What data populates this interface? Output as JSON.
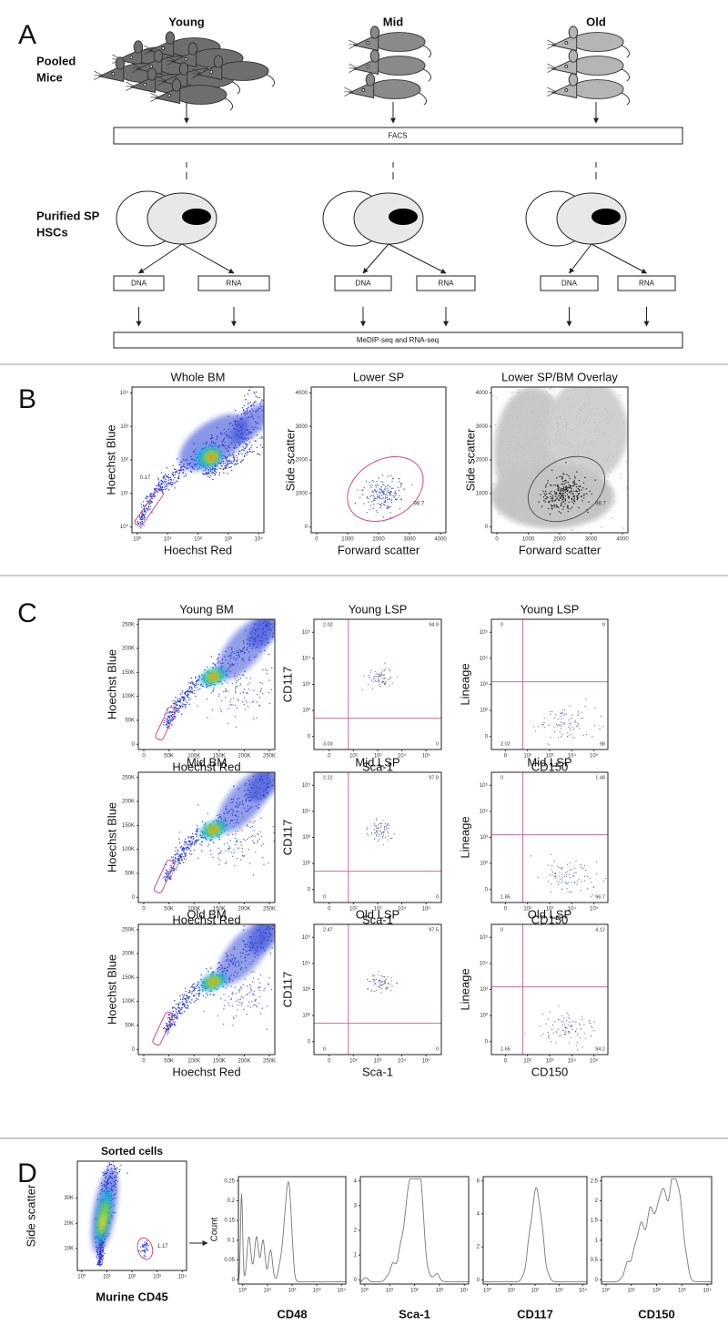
{
  "panel_a": {
    "letter": "A",
    "row_labels": [
      [
        "Pooled",
        "Mice"
      ],
      [
        "Purified SP",
        "HSCs"
      ]
    ],
    "groups": [
      {
        "name": "Young",
        "boxes": [
          "DNA",
          "RNA"
        ]
      },
      {
        "name": "Mid",
        "boxes": [
          "DNA",
          "RNA"
        ]
      },
      {
        "name": "Old",
        "boxes": [
          "DNA",
          "RNA"
        ]
      }
    ],
    "facs": "FACS",
    "sequencing": "MeDIP-seq and RNA-seq"
  },
  "panel_b": {
    "letter": "B",
    "plots": [
      {
        "title": "Whole BM",
        "x_label": "Hoechst Red",
        "y_label": "Hoechst Blue",
        "x_ticks": [
          "10⁰",
          "10¹",
          "10²",
          "10³",
          "10⁴"
        ],
        "y_ticks": [
          "10⁰",
          "10¹",
          "10²",
          "10³",
          "10⁴"
        ],
        "gate_label": "0.17"
      },
      {
        "title": "Lower SP",
        "x_label": "Forward scatter",
        "y_label": "Side scatter",
        "x_ticks": [
          "0",
          "1000",
          "2000",
          "3000",
          "4000"
        ],
        "y_ticks": [
          "0",
          "1000",
          "2000",
          "3000",
          "4000"
        ],
        "gate_label": "98.7"
      },
      {
        "title": "Lower SP/BM Overlay",
        "x_label": "Forward scatter",
        "y_label": "Side scatter",
        "x_ticks": [
          "0",
          "1000",
          "2000",
          "3000",
          "4000"
        ],
        "y_ticks": [
          "0",
          "1000",
          "2000",
          "3000",
          "4000"
        ],
        "gate_label": "98.7"
      }
    ]
  },
  "panel_c": {
    "letter": "C",
    "rows": [
      [
        {
          "title": "Young BM",
          "x_label": "Hoechst Red",
          "y_label": "Hoechst Blue",
          "x_ticks": [
            "0",
            "50K",
            "100K",
            "150K",
            "200K",
            "250K"
          ],
          "y_ticks": [
            "0",
            "50K",
            "100K",
            "150K",
            "200K",
            "250K"
          ]
        },
        {
          "title": "Young LSP",
          "x_label": "Sca-1",
          "y_label": "CD117",
          "x_ticks": [
            "0",
            "10²",
            "10³",
            "10⁴",
            "10⁵"
          ],
          "y_ticks": [
            "0",
            "10²",
            "10³",
            "10⁴",
            "10⁵"
          ],
          "quadrants": [
            "2.02",
            "94.9",
            "3.03",
            "0"
          ]
        },
        {
          "title": "Young LSP",
          "x_label": "CD150",
          "y_label": "Lineage",
          "x_ticks": [
            "0",
            "10²",
            "10³",
            "10⁴",
            "10⁵"
          ],
          "y_ticks": [
            "0",
            "10²",
            "10³",
            "10⁴",
            "10⁵"
          ],
          "quadrants": [
            "0",
            "0",
            "2.02",
            "98"
          ]
        }
      ],
      [
        {
          "title": "Mid BM",
          "x_label": "Hoechst Red",
          "y_label": "Hoechst Blue",
          "x_ticks": [
            "0",
            "50K",
            "100K",
            "150K",
            "200K",
            "250K"
          ],
          "y_ticks": [
            "0",
            "50K",
            "100K",
            "150K",
            "200K",
            "250K"
          ]
        },
        {
          "title": "Mid LSP",
          "x_label": "Sca-1",
          "y_label": "CD117",
          "x_ticks": [
            "0",
            "10²",
            "10³",
            "10⁴",
            "10⁵"
          ],
          "y_ticks": [
            "0",
            "10²",
            "10³",
            "10⁴",
            "10⁵"
          ],
          "quadrants": [
            "2.22",
            "97.8",
            "0",
            "0"
          ]
        },
        {
          "title": "Mid LSP",
          "x_label": "CD150",
          "y_label": "Lineage",
          "x_ticks": [
            "0",
            "10²",
            "10³",
            "10⁴",
            "10⁵"
          ],
          "y_ticks": [
            "0",
            "10²",
            "10³",
            "10⁴",
            "10⁵"
          ],
          "quadrants": [
            "0",
            "1.48",
            "1.85",
            "96.7"
          ]
        }
      ],
      [
        {
          "title": "Old BM",
          "x_label": "Hoechst Red",
          "y_label": "Hoechst Blue",
          "x_ticks": [
            "0",
            "50K",
            "100K",
            "150K",
            "200K",
            "250K"
          ],
          "y_ticks": [
            "0",
            "50K",
            "100K",
            "150K",
            "200K",
            "250K"
          ]
        },
        {
          "title": "Old LSP",
          "x_label": "Sca-1",
          "y_label": "CD117",
          "x_ticks": [
            "0",
            "10²",
            "10³",
            "10⁴",
            "10⁵"
          ],
          "y_ticks": [
            "0",
            "10²",
            "10³",
            "10⁴",
            "10⁵"
          ],
          "quadrants": [
            "2.47",
            "97.5",
            "0",
            "0"
          ]
        },
        {
          "title": "Old LSP",
          "x_label": "CD150",
          "y_label": "Lineage",
          "x_ticks": [
            "0",
            "10²",
            "10³",
            "10⁴",
            "10⁵"
          ],
          "y_ticks": [
            "0",
            "10²",
            "10³",
            "10⁴",
            "10⁵"
          ],
          "quadrants": [
            "0",
            "4.12",
            "1.65",
            "94.2"
          ]
        }
      ]
    ]
  },
  "panel_d": {
    "letter": "D",
    "scatter": {
      "title": "Sorted cells",
      "x_label": "Murine CD45",
      "y_label": "Side scatter",
      "x_ticks": [
        "10⁰",
        "10¹",
        "10²",
        "10³",
        "10⁴"
      ],
      "y_ticks": [
        "10K",
        "20K",
        "30K"
      ],
      "gate_label": "1.17"
    },
    "histograms": {
      "y_label": "Count",
      "plots": [
        {
          "x_label": "CD48",
          "x_ticks": [
            "10⁰",
            "10¹",
            "10²",
            "10³",
            "10⁴"
          ],
          "y_ticks": [
            "0",
            "0.05",
            "0.1",
            "0.15",
            "0.2",
            "0.25"
          ]
        },
        {
          "x_label": "Sca-1",
          "x_ticks": [
            "10⁰",
            "10¹",
            "10²",
            "10³",
            "10⁴"
          ],
          "y_ticks": [
            "0",
            "1",
            "2",
            "3",
            "4"
          ]
        },
        {
          "x_label": "CD117",
          "x_ticks": [
            "10⁰",
            "10¹",
            "10²",
            "10³",
            "10⁴"
          ],
          "y_ticks": [
            "0",
            "2",
            "4",
            "6"
          ]
        },
        {
          "x_label": "CD150",
          "x_ticks": [
            "10⁰",
            "10¹",
            "10²",
            "10³",
            "10⁴"
          ],
          "y_ticks": [
            "0",
            "0.5",
            "1",
            "1.5",
            "2",
            "2.5"
          ]
        }
      ]
    }
  }
}
